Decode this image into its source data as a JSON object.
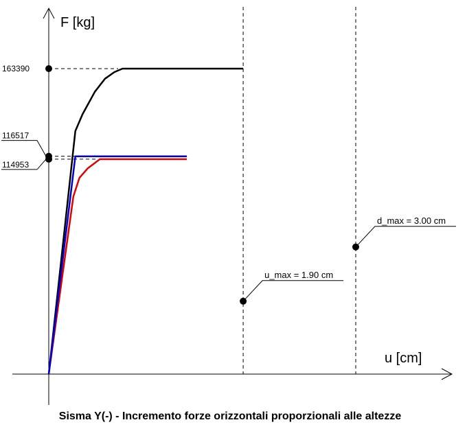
{
  "chart_data": {
    "type": "line",
    "title": "Sisma Y(-) - Incremento forze orizzontali proporzionali alle altezze",
    "xlabel": "u [cm]",
    "ylabel": "F [kg]",
    "xlim": [
      0,
      3.5
    ],
    "ylim": [
      0,
      250000
    ],
    "grid": false,
    "series": [
      {
        "color": "#000000",
        "points": [
          [
            0,
            0
          ],
          [
            0.26,
            130000
          ],
          [
            0.33,
            139000
          ],
          [
            0.45,
            151000
          ],
          [
            0.55,
            158000
          ],
          [
            0.64,
            161500
          ],
          [
            0.72,
            163390
          ],
          [
            1.9,
            163390
          ]
        ]
      },
      {
        "color": "#e00000",
        "points": [
          [
            0,
            0
          ],
          [
            0.24,
            95000
          ],
          [
            0.3,
            105000
          ],
          [
            0.38,
            110000
          ],
          [
            0.5,
            114953
          ],
          [
            1.35,
            114953
          ]
        ]
      },
      {
        "color": "#0000d0",
        "points": [
          [
            0,
            0
          ],
          [
            0.26,
            116517
          ],
          [
            1.35,
            116517
          ]
        ]
      }
    ],
    "y_marked": [
      {
        "label": "163390",
        "value": 163390
      },
      {
        "label": "116517",
        "value": 116517
      },
      {
        "label": "114953",
        "value": 114953
      }
    ],
    "vertical_markers": [
      {
        "label": "u_max = 1.90 cm",
        "x": 1.9,
        "point_y": 39000
      },
      {
        "label": "d_max = 3.00 cm",
        "x": 3.0,
        "point_y": 68000
      }
    ]
  }
}
